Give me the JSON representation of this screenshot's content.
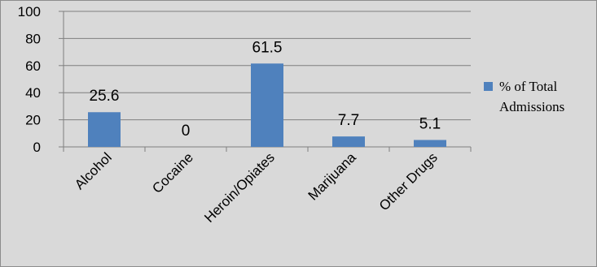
{
  "chart_data": {
    "type": "bar",
    "categories": [
      "Alcohol",
      "Cocaine",
      "Heroin/Opiates",
      "Marijuana",
      "Other Drugs"
    ],
    "series": [
      {
        "name": "% of Total Admissions",
        "values": [
          25.6,
          0,
          61.5,
          7.7,
          5.1
        ],
        "color": "#4f81bd"
      }
    ],
    "data_labels": [
      "25.6",
      "0",
      "61.5",
      "7.7",
      "5.1"
    ],
    "ylim": [
      0,
      100
    ],
    "yticks": [
      0,
      20,
      40,
      60,
      80,
      100
    ],
    "grid": true,
    "legend_position": "right",
    "legend_lines": [
      "% of Total",
      "Admissions"
    ],
    "xlabel": "",
    "ylabel": "",
    "title": ""
  }
}
